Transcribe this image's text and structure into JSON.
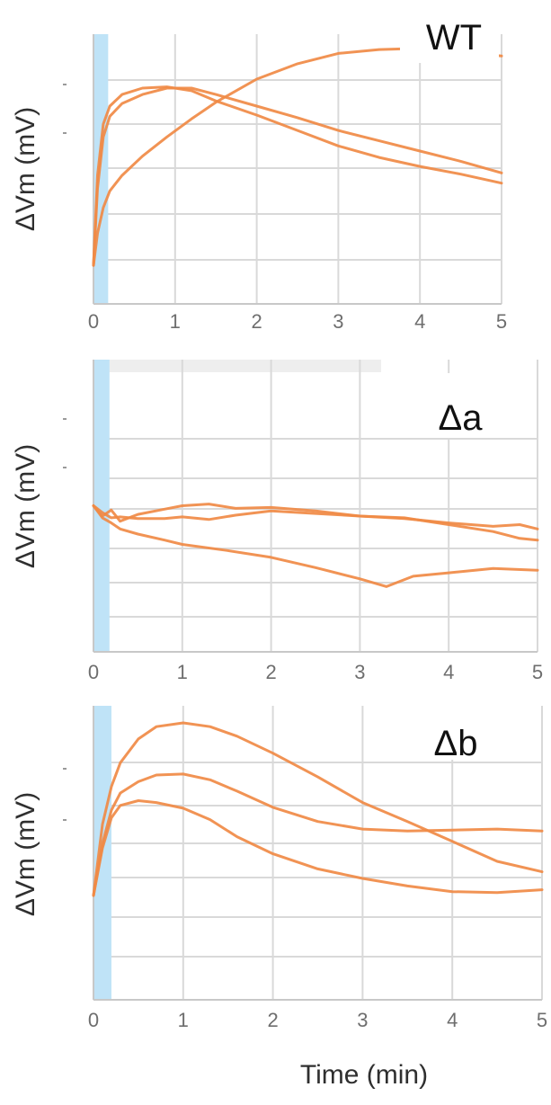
{
  "chart_data": [
    {
      "type": "line",
      "title": "WT",
      "xlabel": "",
      "ylabel": "ΔVm (mV)",
      "xlim": [
        0,
        5
      ],
      "ylim": [
        -0.3,
        1.8
      ],
      "x_ticks": [
        "0",
        "1",
        "2",
        "3",
        "4",
        "5"
      ],
      "stimulus_window": [
        0,
        0.18
      ],
      "series": [
        {
          "x": [
            0,
            0.05,
            0.12,
            0.2,
            0.35,
            0.6,
            0.9,
            1.2,
            1.5,
            2.0,
            2.5,
            3.0,
            3.5,
            4.0,
            4.5,
            5.0
          ],
          "values": [
            0,
            0.7,
            1.1,
            1.24,
            1.33,
            1.38,
            1.39,
            1.36,
            1.28,
            1.17,
            1.05,
            0.93,
            0.84,
            0.77,
            0.71,
            0.64
          ]
        },
        {
          "x": [
            0,
            0.05,
            0.12,
            0.2,
            0.35,
            0.6,
            0.9,
            1.2,
            1.5,
            2.0,
            2.5,
            3.0,
            3.5,
            4.0,
            4.5,
            5.0
          ],
          "values": [
            0,
            0.6,
            1.0,
            1.16,
            1.26,
            1.33,
            1.38,
            1.38,
            1.33,
            1.24,
            1.15,
            1.05,
            0.97,
            0.89,
            0.81,
            0.72
          ]
        },
        {
          "x": [
            0,
            0.05,
            0.12,
            0.2,
            0.35,
            0.6,
            0.9,
            1.2,
            1.5,
            2.0,
            2.5,
            3.0,
            3.5,
            4.0,
            4.5,
            5.0
          ],
          "values": [
            0,
            0.25,
            0.45,
            0.58,
            0.7,
            0.85,
            1.0,
            1.14,
            1.27,
            1.45,
            1.57,
            1.65,
            1.68,
            1.69,
            1.66,
            1.63
          ]
        }
      ]
    },
    {
      "type": "line",
      "title": "Δa",
      "xlabel": "",
      "ylabel": "ΔVm (mV)",
      "xlim": [
        0,
        5
      ],
      "ylim": [
        -1.7,
        1.7
      ],
      "x_ticks": [
        "0",
        "1",
        "2",
        "3",
        "4",
        "5"
      ],
      "stimulus_window": [
        0,
        0.18
      ],
      "series": [
        {
          "x": [
            0,
            0.1,
            0.2,
            0.3,
            0.5,
            0.8,
            1.0,
            1.3,
            1.6,
            2.0,
            2.5,
            3.0,
            3.5,
            4.0,
            4.5,
            4.8,
            5.0
          ],
          "values": [
            0,
            -0.12,
            -0.05,
            -0.18,
            -0.1,
            -0.04,
            0.0,
            0.02,
            -0.03,
            -0.02,
            -0.06,
            -0.12,
            -0.15,
            -0.2,
            -0.24,
            -0.22,
            -0.27
          ]
        },
        {
          "x": [
            0,
            0.1,
            0.2,
            0.3,
            0.5,
            0.8,
            1.0,
            1.3,
            1.6,
            2.0,
            2.5,
            3.0,
            3.5,
            4.0,
            4.5,
            4.8,
            5.0
          ],
          "values": [
            0,
            -0.08,
            -0.14,
            -0.13,
            -0.15,
            -0.15,
            -0.13,
            -0.16,
            -0.11,
            -0.06,
            -0.09,
            -0.12,
            -0.14,
            -0.22,
            -0.3,
            -0.38,
            -0.4
          ]
        },
        {
          "x": [
            0,
            0.1,
            0.2,
            0.3,
            0.5,
            0.8,
            1.0,
            1.5,
            2.0,
            2.5,
            3.0,
            3.3,
            3.6,
            4.0,
            4.5,
            5.0
          ],
          "values": [
            0,
            -0.14,
            -0.2,
            -0.27,
            -0.33,
            -0.4,
            -0.45,
            -0.52,
            -0.6,
            -0.72,
            -0.85,
            -0.94,
            -0.82,
            -0.78,
            -0.73,
            -0.75
          ]
        }
      ]
    },
    {
      "type": "line",
      "title": "Δb",
      "xlabel": "Time (min)",
      "ylabel": "ΔVm (mV)",
      "xlim": [
        0,
        5
      ],
      "ylim": [
        -1.1,
        2.0
      ],
      "x_ticks": [
        "0",
        "1",
        "2",
        "3",
        "4",
        "5"
      ],
      "stimulus_window": [
        0,
        0.2
      ],
      "series": [
        {
          "x": [
            0,
            0.1,
            0.2,
            0.3,
            0.5,
            0.7,
            1.0,
            1.3,
            1.6,
            2.0,
            2.5,
            3.0,
            3.5,
            4.0,
            4.5,
            5.0
          ],
          "values": [
            0,
            0.75,
            1.15,
            1.4,
            1.65,
            1.78,
            1.82,
            1.78,
            1.68,
            1.5,
            1.25,
            0.98,
            0.78,
            0.57,
            0.36,
            0.25
          ]
        },
        {
          "x": [
            0,
            0.1,
            0.2,
            0.3,
            0.5,
            0.7,
            1.0,
            1.3,
            1.6,
            2.0,
            2.5,
            3.0,
            3.5,
            4.0,
            4.5,
            5.0
          ],
          "values": [
            0,
            0.55,
            0.9,
            1.08,
            1.2,
            1.27,
            1.28,
            1.22,
            1.1,
            0.93,
            0.78,
            0.7,
            0.68,
            0.69,
            0.7,
            0.68
          ]
        },
        {
          "x": [
            0,
            0.1,
            0.2,
            0.3,
            0.5,
            0.7,
            1.0,
            1.3,
            1.6,
            2.0,
            2.5,
            3.0,
            3.5,
            4.0,
            4.5,
            5.0
          ],
          "values": [
            0,
            0.5,
            0.82,
            0.95,
            1.0,
            0.98,
            0.92,
            0.8,
            0.62,
            0.44,
            0.28,
            0.18,
            0.1,
            0.04,
            0.03,
            0.06
          ]
        }
      ]
    }
  ]
}
